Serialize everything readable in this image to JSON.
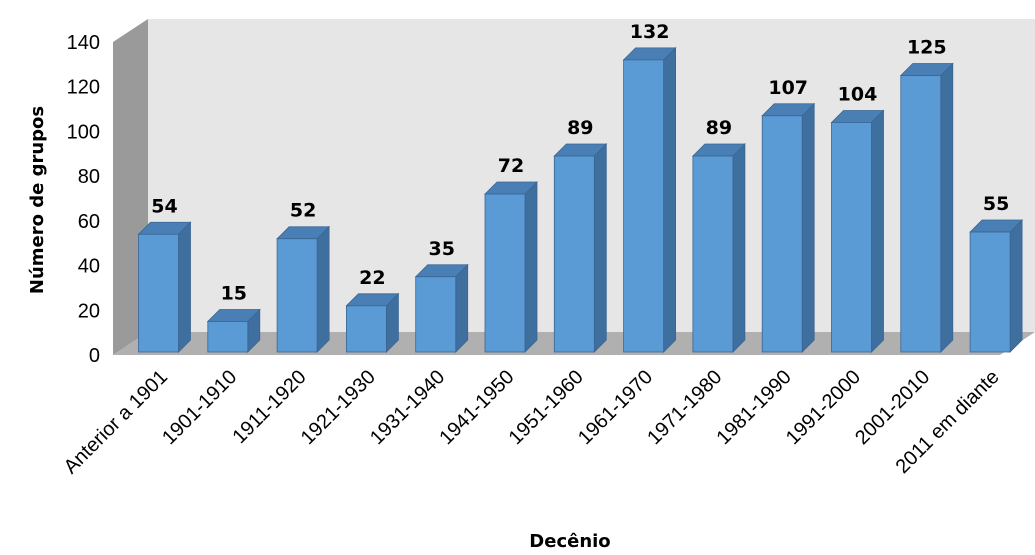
{
  "chart_data": {
    "type": "bar",
    "title": "",
    "xlabel": "Decênio",
    "ylabel": "Número de grupos",
    "ylim": [
      0,
      140
    ],
    "yticks": [
      0,
      20,
      40,
      60,
      80,
      100,
      120,
      140
    ],
    "categories": [
      "Anterior a 1901",
      "1901-1910",
      "1911-1920",
      "1921-1930",
      "1931-1940",
      "1941-1950",
      "1951-1960",
      "1961-1970",
      "1971-1980",
      "1981-1990",
      "1991-2000",
      "2001-2010",
      "2011 em diante"
    ],
    "values": [
      54,
      15,
      52,
      22,
      35,
      72,
      89,
      132,
      89,
      107,
      104,
      125,
      55
    ],
    "data_labels": [
      "54",
      "15",
      "52",
      "22",
      "35",
      "72",
      "89",
      "132",
      "89",
      "107",
      "104",
      "125",
      "55"
    ],
    "grid": false,
    "legend": "none",
    "colors": {
      "bar_front": "#5b9bd5",
      "bar_side": "#3f6f9f",
      "bar_top": "#4a7fb5",
      "bar_outline": "#3a6592",
      "back_wall": "#e6e6e6",
      "side_wall": "#9a9a9a",
      "floor": "#b0b0b0"
    }
  }
}
